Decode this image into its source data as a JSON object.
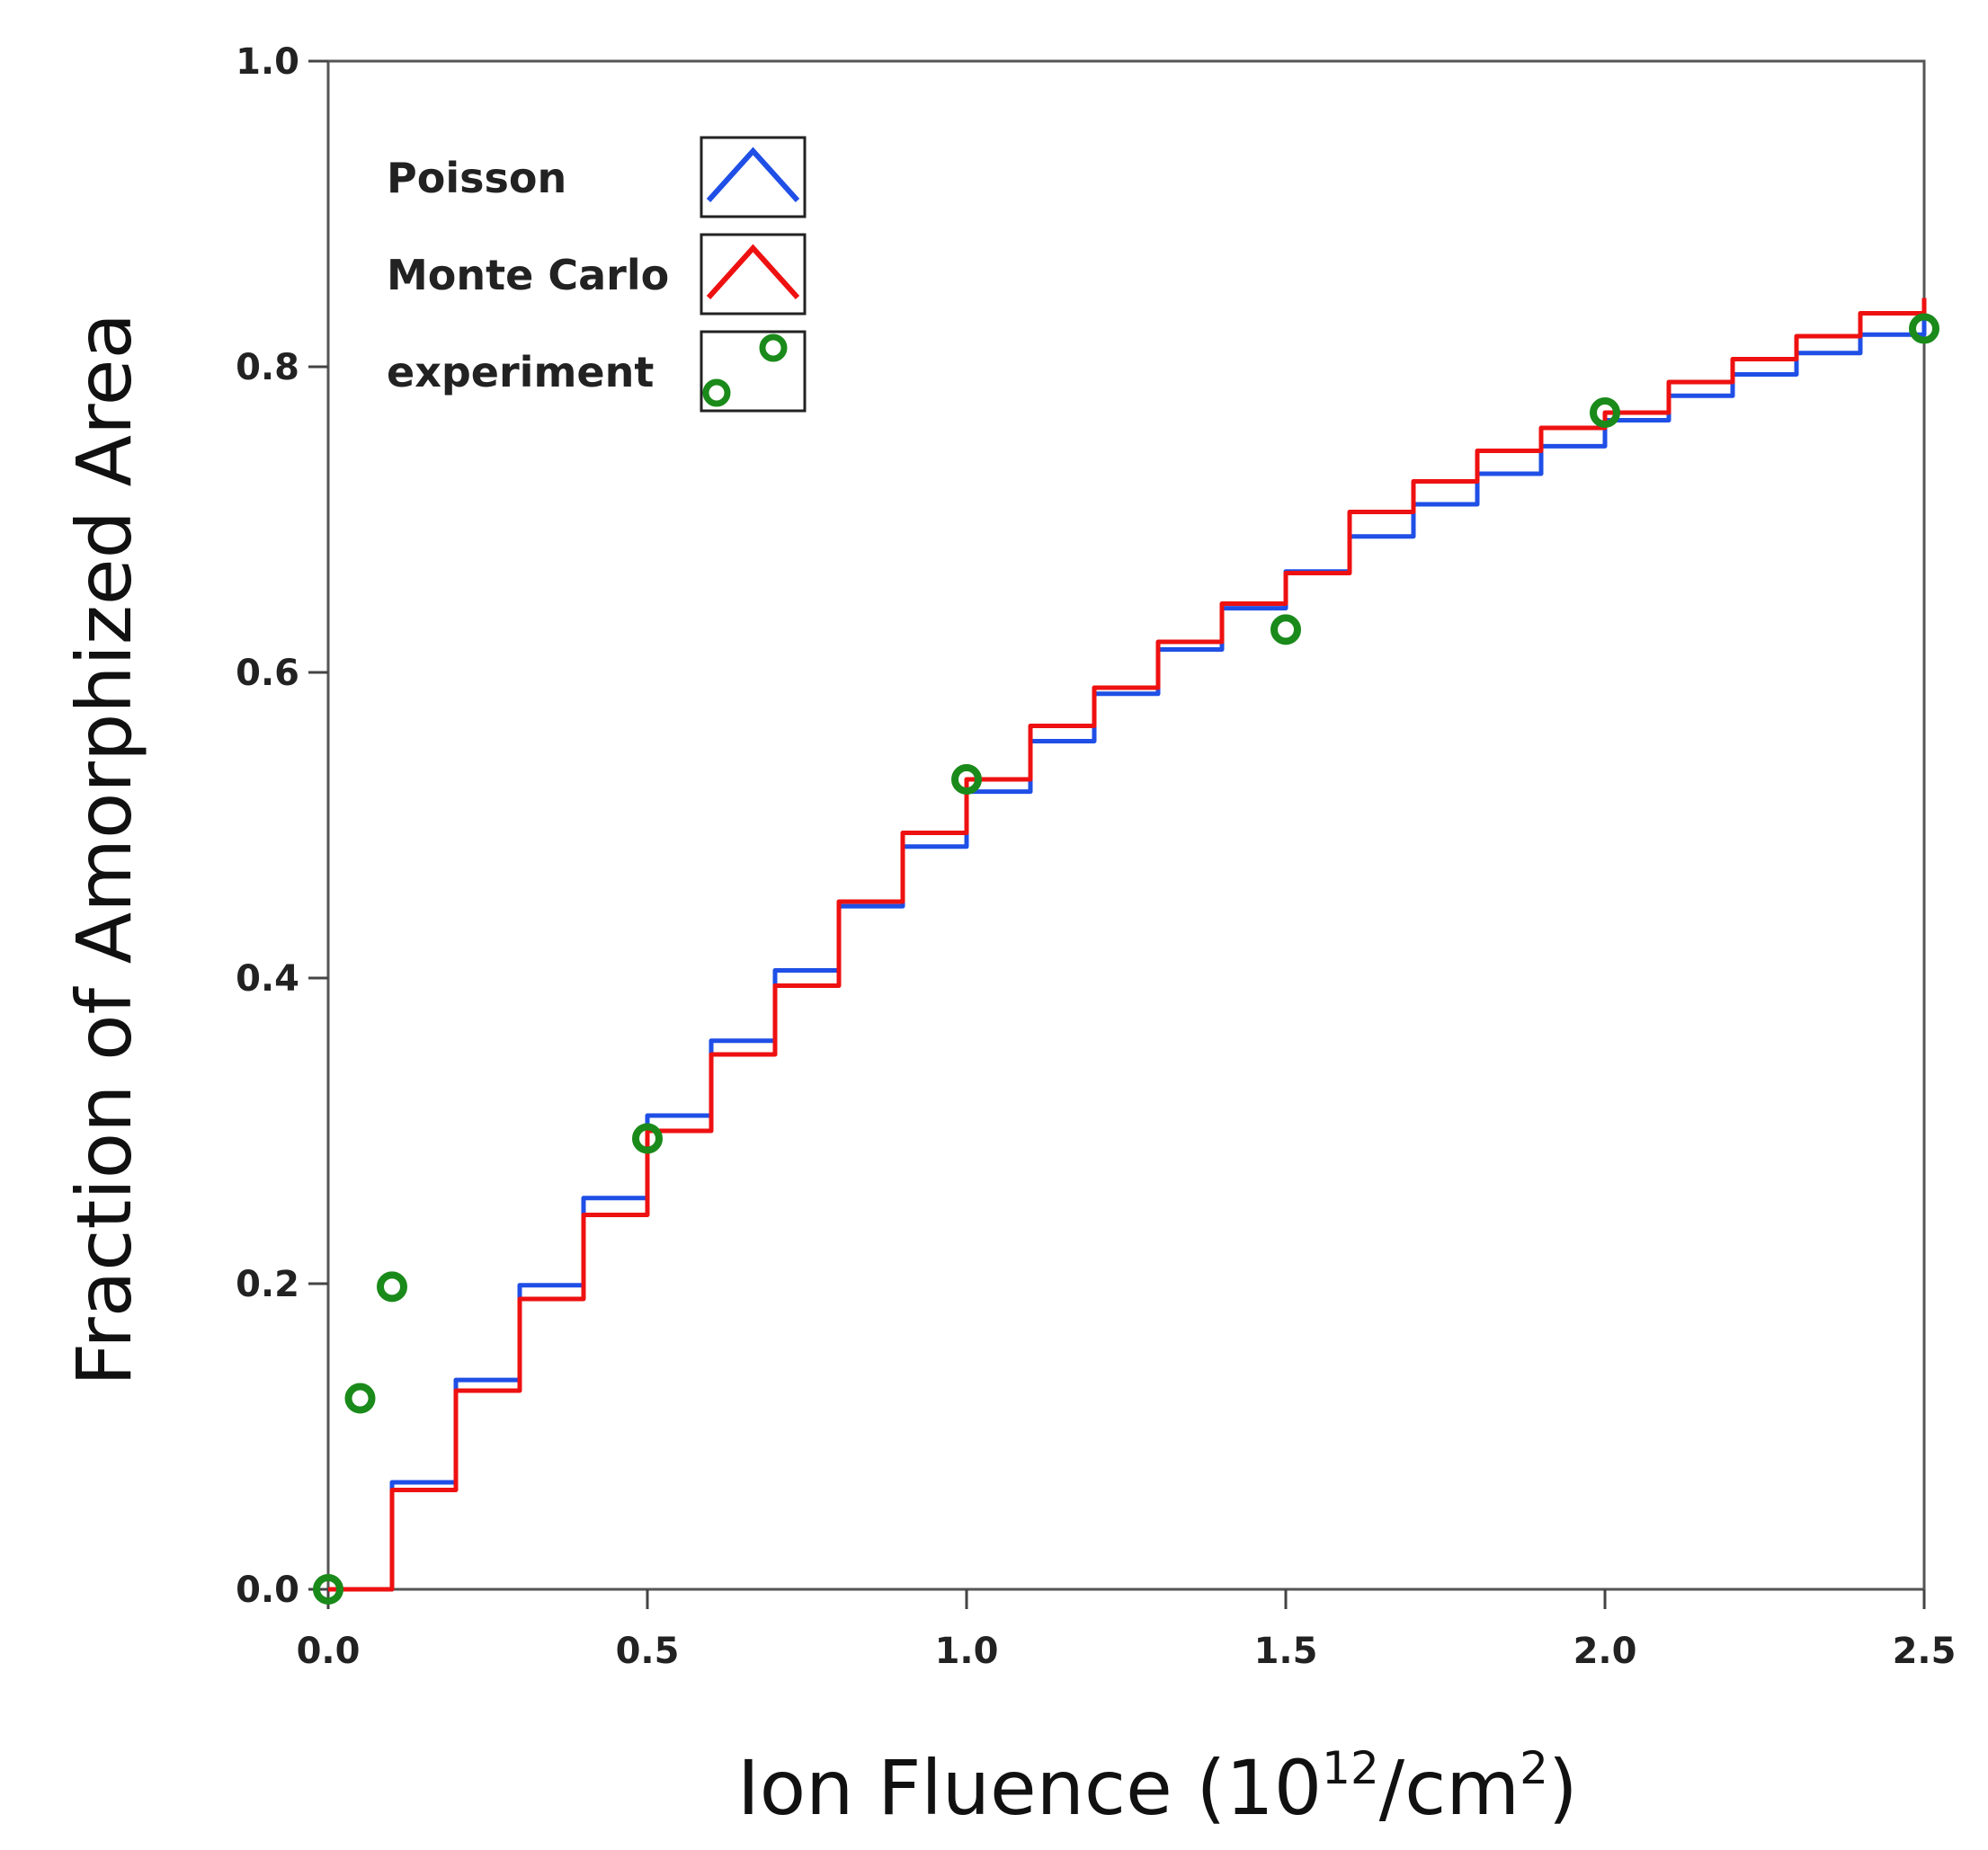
{
  "chart_data": {
    "type": "line",
    "xlabel": {
      "main": "Ion Fluence (10",
      "sup1": "12",
      "mid": "/cm",
      "sup2": "2",
      "end": ")"
    },
    "ylabel": "Fraction of Amorphized Area",
    "xlim": [
      0,
      2.5
    ],
    "ylim": [
      0,
      1.0
    ],
    "x_ticks": [
      "0.0",
      "0.5",
      "1.0",
      "1.5",
      "2.0",
      "2.5"
    ],
    "y_ticks": [
      "0.0",
      "0.2",
      "0.4",
      "0.6",
      "0.8",
      "1.0"
    ],
    "grid": false,
    "legend_position": "top-left",
    "series": [
      {
        "name": "Poisson",
        "color": "#1f4fe6",
        "style": "line",
        "x": [
          0,
          0.1,
          0.2,
          0.3,
          0.4,
          0.5,
          0.6,
          0.7,
          0.8,
          0.9,
          1.0,
          1.1,
          1.2,
          1.3,
          1.4,
          1.5,
          1.6,
          1.7,
          1.8,
          1.9,
          2.0,
          2.1,
          2.2,
          2.3,
          2.4,
          2.5
        ],
        "y": [
          0.0,
          0.07,
          0.137,
          0.199,
          0.256,
          0.31,
          0.359,
          0.405,
          0.447,
          0.486,
          0.522,
          0.555,
          0.586,
          0.615,
          0.642,
          0.666,
          0.689,
          0.71,
          0.73,
          0.748,
          0.765,
          0.781,
          0.795,
          0.809,
          0.821,
          0.833
        ]
      },
      {
        "name": "Monte Carlo",
        "color": "#ee1111",
        "style": "line",
        "x": [
          0,
          0.1,
          0.2,
          0.3,
          0.4,
          0.5,
          0.6,
          0.7,
          0.8,
          0.9,
          1.0,
          1.1,
          1.2,
          1.3,
          1.4,
          1.5,
          1.6,
          1.7,
          1.8,
          1.9,
          2.0,
          2.1,
          2.2,
          2.3,
          2.4,
          2.5
        ],
        "y": [
          0.0,
          0.065,
          0.13,
          0.19,
          0.245,
          0.3,
          0.35,
          0.395,
          0.45,
          0.495,
          0.53,
          0.565,
          0.59,
          0.62,
          0.645,
          0.665,
          0.705,
          0.725,
          0.745,
          0.76,
          0.77,
          0.79,
          0.805,
          0.82,
          0.835,
          0.845
        ]
      },
      {
        "name": "experiment",
        "color": "#1a8a1a",
        "style": "marker",
        "x": [
          0.0,
          0.05,
          0.1,
          0.5,
          1.0,
          1.5,
          2.0,
          2.5
        ],
        "y": [
          0.0,
          0.125,
          0.198,
          0.295,
          0.53,
          0.628,
          0.77,
          0.825
        ]
      }
    ]
  }
}
